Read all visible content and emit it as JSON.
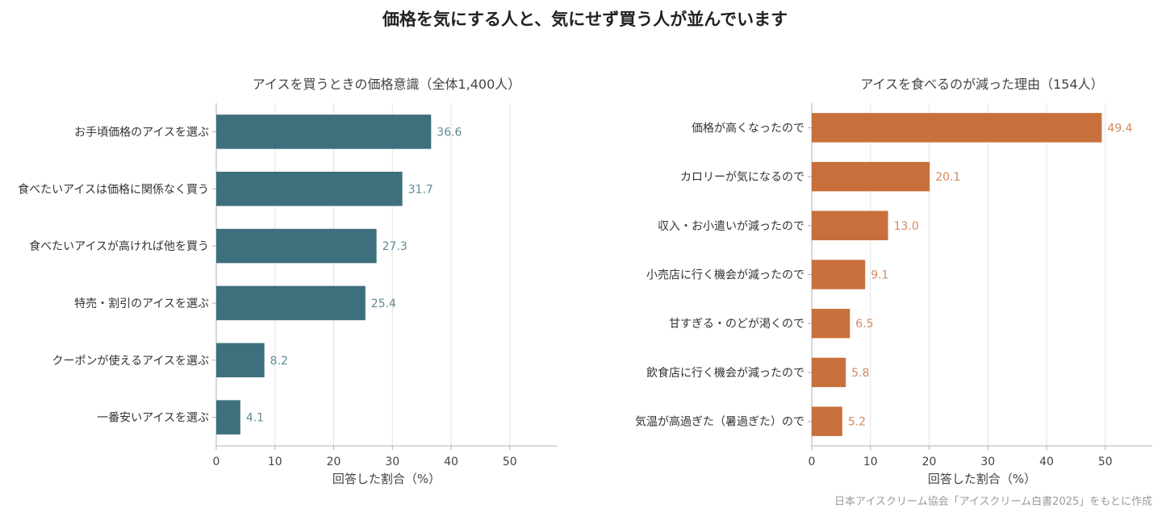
{
  "title": "価格を気にする人と、気にせず買う人が並んでいます",
  "source": "日本アイスクリーム協会「アイスクリーム白書2025」をもとに作成",
  "chart_data": [
    {
      "type": "bar",
      "orientation": "horizontal",
      "title": "アイスを買うときの価格意識（全体1,400人）",
      "xlabel": "回答した割合（%）",
      "ylabel": "",
      "xlim": [
        0,
        58
      ],
      "xticks": [
        0,
        10,
        20,
        30,
        40,
        50
      ],
      "grid": "vertical",
      "color": "#3e6f7d",
      "categories": [
        "お手頃価格のアイスを選ぶ",
        "食べたいアイスは価格に関係なく買う",
        "食べたいアイスが高ければ他を買う",
        "特売・割引のアイスを選ぶ",
        "クーポンが使えるアイスを選ぶ",
        "一番安いアイスを選ぶ"
      ],
      "values": [
        36.6,
        31.7,
        27.3,
        25.4,
        8.2,
        4.1
      ],
      "value_labels": [
        "36.6",
        "31.7",
        "27.3",
        "25.4",
        "8.2",
        "4.1"
      ]
    },
    {
      "type": "bar",
      "orientation": "horizontal",
      "title": "アイスを食べるのが減った理由（154人）",
      "xlabel": "回答した割合（%）",
      "ylabel": "",
      "xlim": [
        0,
        58
      ],
      "xticks": [
        0,
        10,
        20,
        30,
        40,
        50
      ],
      "grid": "vertical",
      "color": "#c8703b",
      "categories": [
        "価格が高くなったので",
        "カロリーが気になるので",
        "収入・お小遣いが減ったので",
        "小売店に行く機会が減ったので",
        "甘すぎる・のどが渇くので",
        "飲食店に行く機会が減ったので",
        "気温が高過ぎた（暑過ぎた）ので"
      ],
      "values": [
        49.4,
        20.1,
        13.0,
        9.1,
        6.5,
        5.8,
        5.2
      ],
      "value_labels": [
        "49.4",
        "20.1",
        "13.0",
        "9.1",
        "6.5",
        "5.8",
        "5.2"
      ]
    }
  ]
}
